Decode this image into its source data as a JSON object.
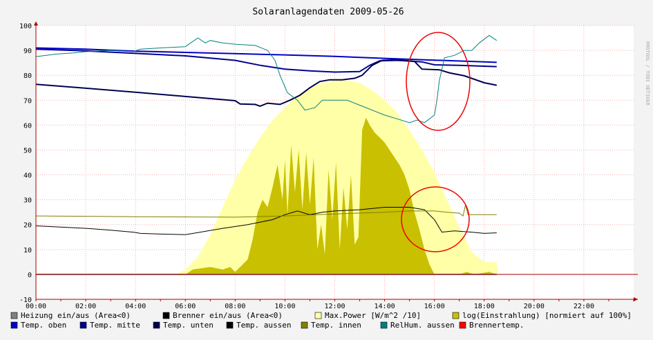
{
  "side_label": "RRDTOOL / TOBI OETIKER",
  "chart_data": {
    "type": "area",
    "title": "Solaranlagendaten 2009-05-26",
    "xlabel": "",
    "ylabel": "",
    "x_ticks": [
      "00:00",
      "02:00",
      "04:00",
      "06:00",
      "08:00",
      "10:00",
      "12:00",
      "14:00",
      "16:00",
      "18:00",
      "20:00",
      "22:00"
    ],
    "x_range_hours": [
      0,
      24
    ],
    "y_ticks": [
      -10,
      0,
      10,
      20,
      30,
      40,
      50,
      60,
      70,
      80,
      90,
      100
    ],
    "ylim": [
      -10,
      100
    ],
    "grid": true,
    "legend_position": "bottom",
    "legend": [
      {
        "label": "Heizung ein/aus (Area<0)",
        "color": "#808080"
      },
      {
        "label": "Brenner ein/aus (Area<0)",
        "color": "#000000"
      },
      {
        "label": "Max.Power [W/m^2 /10]",
        "color": "#ffffa8"
      },
      {
        "label": "log(Einstrahlung) [normiert auf 100%]",
        "color": "#c8c000"
      },
      {
        "label": "Temp. oben",
        "color": "#0000c8"
      },
      {
        "label": "Temp. mitte",
        "color": "#000090"
      },
      {
        "label": "Temp. unten",
        "color": "#000050"
      },
      {
        "label": "Temp. aussen",
        "color": "#000000"
      },
      {
        "label": "Temp. innen",
        "color": "#808000"
      },
      {
        "label": "RelHum. aussen",
        "color": "#008080"
      },
      {
        "label": "Brennertemp.",
        "color": "#ff0000"
      }
    ],
    "series": [
      {
        "name": "Max.Power [W/m^2 /10]",
        "style": "area",
        "color": "#ffffa8",
        "points": [
          [
            5.6,
            0
          ],
          [
            6.0,
            2
          ],
          [
            6.5,
            7
          ],
          [
            7.0,
            16
          ],
          [
            7.5,
            27
          ],
          [
            8.0,
            38
          ],
          [
            8.5,
            47
          ],
          [
            9.0,
            55
          ],
          [
            9.5,
            62
          ],
          [
            10.0,
            67
          ],
          [
            10.5,
            72
          ],
          [
            11.0,
            75
          ],
          [
            11.5,
            77
          ],
          [
            12.0,
            78
          ],
          [
            12.5,
            78
          ],
          [
            13.0,
            77
          ],
          [
            13.5,
            74
          ],
          [
            14.0,
            70
          ],
          [
            14.5,
            65
          ],
          [
            15.0,
            58
          ],
          [
            15.5,
            50
          ],
          [
            16.0,
            41
          ],
          [
            16.5,
            30
          ],
          [
            17.0,
            19
          ],
          [
            17.5,
            9
          ],
          [
            18.0,
            5
          ],
          [
            18.5,
            5
          ],
          [
            18.55,
            0
          ]
        ]
      },
      {
        "name": "log(Einstrahlung) [normiert auf 100%]",
        "style": "area",
        "color": "#c8c000",
        "points": [
          [
            6.0,
            0
          ],
          [
            6.3,
            2
          ],
          [
            7.0,
            3
          ],
          [
            7.5,
            2
          ],
          [
            7.8,
            3
          ],
          [
            8.0,
            1
          ],
          [
            8.2,
            3
          ],
          [
            8.5,
            6
          ],
          [
            8.7,
            14
          ],
          [
            8.9,
            25
          ],
          [
            9.1,
            30
          ],
          [
            9.3,
            27
          ],
          [
            9.5,
            35
          ],
          [
            9.7,
            44
          ],
          [
            9.9,
            30
          ],
          [
            10.0,
            46
          ],
          [
            10.1,
            24
          ],
          [
            10.25,
            52
          ],
          [
            10.4,
            33
          ],
          [
            10.55,
            50
          ],
          [
            10.7,
            26
          ],
          [
            10.85,
            49
          ],
          [
            11.0,
            28
          ],
          [
            11.15,
            47
          ],
          [
            11.3,
            10
          ],
          [
            11.45,
            20
          ],
          [
            11.6,
            8
          ],
          [
            11.75,
            42
          ],
          [
            11.9,
            22
          ],
          [
            12.05,
            45
          ],
          [
            12.2,
            10
          ],
          [
            12.35,
            35
          ],
          [
            12.5,
            18
          ],
          [
            12.65,
            40
          ],
          [
            12.8,
            12
          ],
          [
            12.95,
            15
          ],
          [
            13.1,
            58
          ],
          [
            13.25,
            63
          ],
          [
            13.4,
            60
          ],
          [
            13.6,
            57
          ],
          [
            13.8,
            55
          ],
          [
            14.0,
            53
          ],
          [
            14.2,
            50
          ],
          [
            14.4,
            47
          ],
          [
            14.6,
            44
          ],
          [
            14.8,
            40
          ],
          [
            15.0,
            34
          ],
          [
            15.2,
            25
          ],
          [
            15.4,
            18
          ],
          [
            15.6,
            10
          ],
          [
            15.8,
            4
          ],
          [
            16.0,
            0
          ],
          [
            17.0,
            0
          ],
          [
            17.3,
            1
          ],
          [
            17.6,
            0
          ],
          [
            18.2,
            1
          ],
          [
            18.5,
            0
          ]
        ]
      },
      {
        "name": "Temp. oben",
        "style": "line",
        "color": "#0000c8",
        "points": [
          [
            0,
            91
          ],
          [
            2,
            90.5
          ],
          [
            4,
            89.7
          ],
          [
            6,
            89.2
          ],
          [
            8,
            88.7
          ],
          [
            10,
            88.2
          ],
          [
            12,
            87.6
          ],
          [
            14,
            86.8
          ],
          [
            16,
            86.1
          ],
          [
            18.5,
            85.2
          ]
        ]
      },
      {
        "name": "Temp. mitte",
        "style": "line",
        "color": "#000090",
        "points": [
          [
            0,
            90.5
          ],
          [
            2,
            89.8
          ],
          [
            4,
            88.8
          ],
          [
            6,
            87.8
          ],
          [
            8,
            86
          ],
          [
            9,
            84
          ],
          [
            10,
            82.5
          ],
          [
            11,
            81.8
          ],
          [
            12,
            81.3
          ],
          [
            13,
            81.5
          ],
          [
            13.4,
            84
          ],
          [
            13.8,
            85.8
          ],
          [
            14.5,
            86
          ],
          [
            15.5,
            85.4
          ],
          [
            16,
            84.2
          ],
          [
            17,
            84
          ],
          [
            18.5,
            83.5
          ]
        ]
      },
      {
        "name": "Temp. unten",
        "style": "line",
        "color": "#000050",
        "points": [
          [
            0,
            76.4
          ],
          [
            2,
            74.8
          ],
          [
            4,
            73.2
          ],
          [
            6,
            71.5
          ],
          [
            8,
            69.8
          ],
          [
            8.2,
            68.5
          ],
          [
            8.8,
            68.3
          ],
          [
            9.0,
            67.6
          ],
          [
            9.3,
            68.8
          ],
          [
            9.8,
            68.3
          ],
          [
            10.2,
            70
          ],
          [
            10.6,
            72
          ],
          [
            11.0,
            75
          ],
          [
            11.4,
            77.5
          ],
          [
            11.8,
            78.2
          ],
          [
            12.3,
            78.2
          ],
          [
            12.8,
            78.8
          ],
          [
            13.1,
            80
          ],
          [
            13.5,
            84
          ],
          [
            13.9,
            86
          ],
          [
            14.5,
            86.2
          ],
          [
            15.2,
            85.6
          ],
          [
            15.5,
            82.5
          ],
          [
            16.2,
            82.2
          ],
          [
            16.6,
            81
          ],
          [
            17.2,
            79.8
          ],
          [
            18.0,
            77
          ],
          [
            18.5,
            76
          ]
        ]
      },
      {
        "name": "Temp. aussen",
        "style": "line",
        "color": "#000000",
        "points": [
          [
            0,
            19.5
          ],
          [
            1,
            19
          ],
          [
            2,
            18.5
          ],
          [
            3,
            17.8
          ],
          [
            3.9,
            17
          ],
          [
            4.2,
            16.5
          ],
          [
            5,
            16.2
          ],
          [
            6,
            16
          ],
          [
            6.5,
            16.8
          ],
          [
            7.5,
            18.5
          ],
          [
            8.5,
            20
          ],
          [
            9.5,
            22
          ],
          [
            10,
            24
          ],
          [
            10.5,
            25.5
          ],
          [
            11,
            24
          ],
          [
            11.5,
            25
          ],
          [
            12,
            25.5
          ],
          [
            13,
            26
          ],
          [
            14,
            27
          ],
          [
            15,
            27
          ],
          [
            15.6,
            26
          ],
          [
            16.0,
            22
          ],
          [
            16.3,
            17
          ],
          [
            16.8,
            17.5
          ],
          [
            17.5,
            17
          ],
          [
            18,
            16.5
          ],
          [
            18.5,
            16.7
          ]
        ]
      },
      {
        "name": "Temp. innen",
        "style": "line",
        "color": "#808000",
        "points": [
          [
            0,
            23.5
          ],
          [
            4,
            23.2
          ],
          [
            8,
            23
          ],
          [
            10,
            23.5
          ],
          [
            12,
            24.3
          ],
          [
            14,
            25
          ],
          [
            15,
            25.5
          ],
          [
            16,
            25.5
          ],
          [
            16.5,
            25
          ],
          [
            17.0,
            24.6
          ],
          [
            17.15,
            23.5
          ],
          [
            17.25,
            28
          ],
          [
            17.35,
            24
          ],
          [
            18.5,
            24
          ]
        ]
      },
      {
        "name": "RelHum. aussen",
        "style": "line",
        "color": "#008080",
        "points": [
          [
            0,
            87.5
          ],
          [
            0.8,
            88.5
          ],
          [
            1.5,
            89
          ],
          [
            2,
            89.5
          ],
          [
            3,
            90
          ],
          [
            3.9,
            89.5
          ],
          [
            4.2,
            90.5
          ],
          [
            5,
            91
          ],
          [
            6,
            91.5
          ],
          [
            6.5,
            95
          ],
          [
            6.8,
            93
          ],
          [
            7,
            94
          ],
          [
            7.5,
            93
          ],
          [
            8,
            92.5
          ],
          [
            8.8,
            92
          ],
          [
            9.3,
            90
          ],
          [
            9.6,
            86
          ],
          [
            9.8,
            80
          ],
          [
            10.1,
            73
          ],
          [
            10.5,
            70
          ],
          [
            10.8,
            66
          ],
          [
            11.2,
            67
          ],
          [
            11.5,
            70
          ],
          [
            12,
            70
          ],
          [
            12.5,
            70
          ],
          [
            13,
            68
          ],
          [
            13.5,
            66
          ],
          [
            14,
            64
          ],
          [
            14.5,
            62.5
          ],
          [
            15,
            61
          ],
          [
            15.3,
            62
          ],
          [
            15.6,
            61
          ],
          [
            16.0,
            64
          ],
          [
            16.1,
            70
          ],
          [
            16.2,
            78
          ],
          [
            16.4,
            87
          ],
          [
            16.8,
            88
          ],
          [
            17.2,
            90
          ],
          [
            17.5,
            90
          ],
          [
            17.8,
            93
          ],
          [
            18.2,
            96
          ],
          [
            18.5,
            94
          ]
        ]
      },
      {
        "name": "Heizung ein/aus (Area<0)",
        "style": "line",
        "color": "#808080",
        "points": [
          [
            0,
            0
          ],
          [
            18.5,
            0
          ]
        ]
      }
    ]
  }
}
